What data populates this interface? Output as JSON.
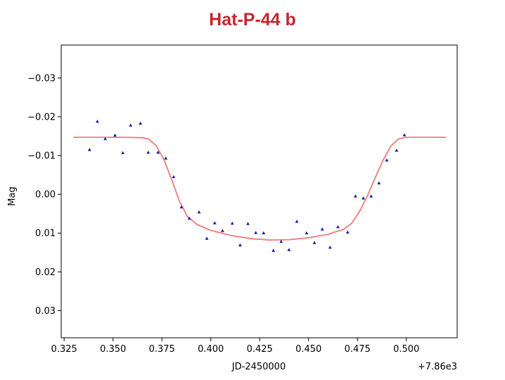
{
  "chart_data": {
    "type": "scatter",
    "title": "Hat-P-44 b",
    "title_color": "#c4262e",
    "xlabel": "JD-2450000",
    "ylabel": "Mag",
    "x_offset_label": "+7.86e3",
    "xlim": [
      0.3235,
      0.526
    ],
    "ylim": [
      0.037,
      -0.0385
    ],
    "y_inverted": true,
    "grid": false,
    "xticks": [
      0.325,
      0.35,
      0.375,
      0.4,
      0.425,
      0.45,
      0.475,
      0.5
    ],
    "xtick_labels": [
      "0.325",
      "0.350",
      "0.375",
      "0.400",
      "0.425",
      "0.450",
      "0.475",
      "0.500"
    ],
    "yticks": [
      -0.03,
      -0.02,
      -0.01,
      0.0,
      0.01,
      0.02,
      0.03
    ],
    "ytick_labels": [
      "−0.03",
      "−0.02",
      "−0.01",
      "0.00",
      "0.01",
      "0.02",
      "0.03"
    ],
    "series": [
      {
        "kind": "points",
        "marker": "triangle",
        "color": "#1a1aa8",
        "points": [
          [
            0.338,
            -0.0115
          ],
          [
            0.342,
            -0.0188
          ],
          [
            0.346,
            -0.0143
          ],
          [
            0.351,
            -0.0152
          ],
          [
            0.355,
            -0.0107
          ],
          [
            0.359,
            -0.0178
          ],
          [
            0.364,
            -0.0183
          ],
          [
            0.368,
            -0.0108
          ],
          [
            0.373,
            -0.0108
          ],
          [
            0.377,
            -0.0093
          ],
          [
            0.381,
            -0.0045
          ],
          [
            0.385,
            0.0033
          ],
          [
            0.389,
            0.0062
          ],
          [
            0.394,
            0.0046
          ],
          [
            0.398,
            0.0114
          ],
          [
            0.402,
            0.0074
          ],
          [
            0.406,
            0.0094
          ],
          [
            0.411,
            0.0075
          ],
          [
            0.415,
            0.0131
          ],
          [
            0.419,
            0.0076
          ],
          [
            0.423,
            0.0099
          ],
          [
            0.427,
            0.01
          ],
          [
            0.432,
            0.0145
          ],
          [
            0.436,
            0.0122
          ],
          [
            0.44,
            0.0143
          ],
          [
            0.444,
            0.007
          ],
          [
            0.449,
            0.01
          ],
          [
            0.453,
            0.0125
          ],
          [
            0.457,
            0.009
          ],
          [
            0.461,
            0.0137
          ],
          [
            0.465,
            0.0084
          ],
          [
            0.47,
            0.0098
          ],
          [
            0.474,
            0.0005
          ],
          [
            0.478,
            0.001
          ],
          [
            0.482,
            0.0005
          ],
          [
            0.486,
            -0.0029
          ],
          [
            0.49,
            -0.0088
          ],
          [
            0.495,
            -0.0113
          ],
          [
            0.499,
            -0.0153
          ]
        ]
      },
      {
        "kind": "line",
        "color": "#f07a7a",
        "points": [
          [
            0.33,
            -0.0147
          ],
          [
            0.355,
            -0.0147
          ],
          [
            0.365,
            -0.0146
          ],
          [
            0.368,
            -0.0143
          ],
          [
            0.372,
            -0.0126
          ],
          [
            0.376,
            -0.009
          ],
          [
            0.38,
            -0.0038
          ],
          [
            0.384,
            0.0018
          ],
          [
            0.388,
            0.0057
          ],
          [
            0.393,
            0.0078
          ],
          [
            0.4,
            0.0093
          ],
          [
            0.41,
            0.0106
          ],
          [
            0.42,
            0.0114
          ],
          [
            0.43,
            0.0118
          ],
          [
            0.44,
            0.0117
          ],
          [
            0.45,
            0.0112
          ],
          [
            0.46,
            0.0103
          ],
          [
            0.468,
            0.009
          ],
          [
            0.472,
            0.0075
          ],
          [
            0.476,
            0.0045
          ],
          [
            0.48,
            0.0005
          ],
          [
            0.484,
            -0.0042
          ],
          [
            0.488,
            -0.0087
          ],
          [
            0.492,
            -0.0124
          ],
          [
            0.496,
            -0.0143
          ],
          [
            0.5,
            -0.0147
          ],
          [
            0.52,
            -0.0147
          ]
        ]
      }
    ]
  }
}
